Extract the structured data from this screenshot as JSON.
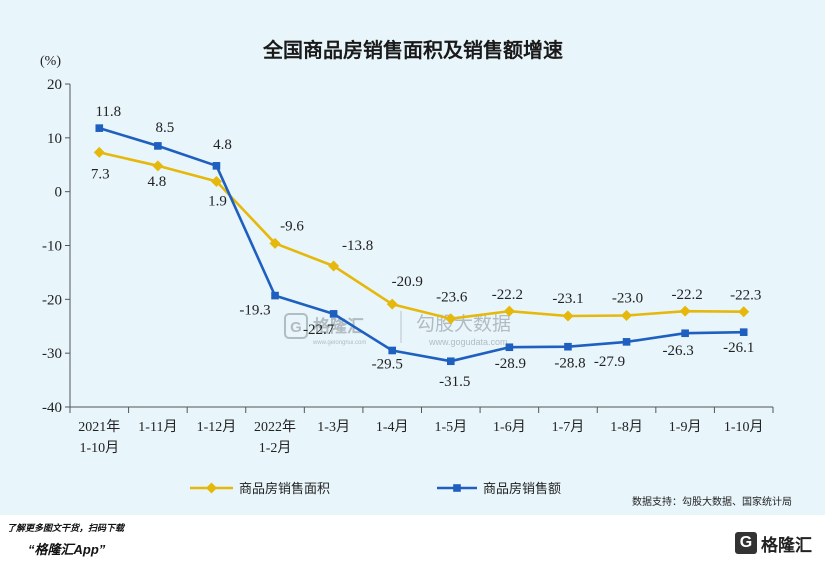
{
  "chart_data": {
    "type": "line",
    "title": "全国商品房销售面积及销售额增速",
    "ylabel": "(%)",
    "xlabel": "",
    "ylim": [
      -40,
      20
    ],
    "yticks": [
      20,
      10,
      0,
      -10,
      -20,
      -30,
      -40
    ],
    "grid": false,
    "legend_position": "bottom",
    "categories": [
      "2021年\n1-10月",
      "1-11月",
      "1-12月",
      "2022年\n1-2月",
      "1-3月",
      "1-4月",
      "1-5月",
      "1-6月",
      "1-7月",
      "1-8月",
      "1-9月",
      "1-10月"
    ],
    "series": [
      {
        "name": "商品房销售面积",
        "color": "#e5b80b",
        "marker": "diamond",
        "values": [
          7.3,
          4.8,
          1.9,
          -9.6,
          -13.8,
          -20.9,
          -23.6,
          -22.2,
          -23.1,
          -23.0,
          -22.2,
          -22.3
        ]
      },
      {
        "name": "商品房销售额",
        "color": "#1e5fbf",
        "marker": "square",
        "values": [
          11.8,
          8.5,
          4.8,
          -19.3,
          -22.7,
          -29.5,
          -31.5,
          -28.9,
          -28.8,
          -27.9,
          -26.3,
          -26.1
        ]
      }
    ],
    "source": "数据支持：勾股大数据、国家统计局"
  },
  "watermark": {
    "logo_letter": "G",
    "brand": "格隆汇",
    "brand_url": "www.gelonghui.com",
    "name": "勾股大数据",
    "url": "www.gogudata.com"
  },
  "footer": {
    "note": "了解更多图文干货，扫码下载",
    "app": "“格隆汇App”",
    "logo_letter": "G",
    "logo_text": "格隆汇"
  },
  "colors": {
    "panel_bg": "#e8f5fb",
    "axis": "#555555"
  }
}
